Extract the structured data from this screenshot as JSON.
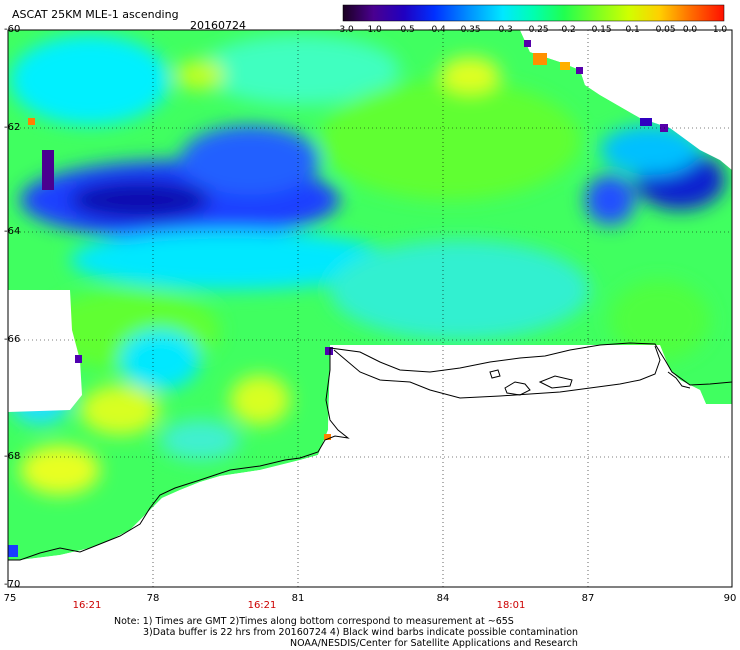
{
  "header": {
    "title": "ASCAT 25KM MLE-1 ascending",
    "date": "20160724"
  },
  "colorbar": {
    "labels": [
      "-3.0",
      "-1.0",
      "-0.5",
      "-0.4",
      "-0.35",
      "-0.3",
      "-0.25",
      "-0.2",
      "-0.15",
      "-0.1",
      "-0.05",
      "0.0",
      "1.0"
    ],
    "colors": [
      "#2a0030",
      "#5a00a0",
      "#1000c8",
      "#0030f0",
      "#0090ff",
      "#00e0ff",
      "#00ffb0",
      "#20ff40",
      "#80ff00",
      "#e0ff00",
      "#ffc000",
      "#ff6000",
      "#ff1000"
    ]
  },
  "axes": {
    "x_ticks": [
      "75",
      "78",
      "81",
      "84",
      "87",
      "90"
    ],
    "y_ticks": [
      "-60",
      "-62",
      "-64",
      "-66",
      "-68",
      "-70"
    ]
  },
  "time_labels": [
    "16:21",
    "16:21",
    "18:01"
  ],
  "notes": {
    "line1": "Note: 1) Times are GMT 2)Times along bottom correspond to measurement at ~65S",
    "line2": "3)Data buffer is 22 hrs from 20160724 4) Black wind barbs indicate possible contamination",
    "line3": "NOAA/NESDIS/Center for Satellite Applications and Research"
  },
  "map_colors": {
    "blue": "#1a3cff",
    "darkblue": "#1010c0",
    "cyan": "#00ffff",
    "aqua": "#40f0e0",
    "green": "#30ff30",
    "lightgreen": "#80ff30",
    "yellow": "#e8ff20",
    "orange": "#ffa000",
    "purple": "#5500aa",
    "coast": "#000000"
  }
}
